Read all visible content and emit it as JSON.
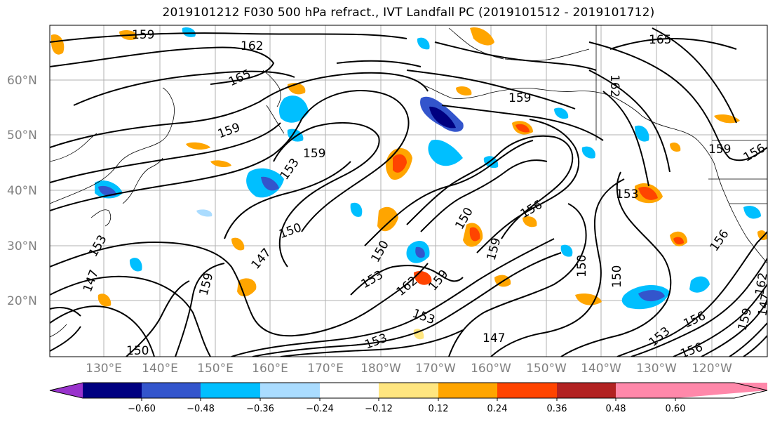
{
  "title": "2019101212 F030 500 hPa refract., IVT Landfall PC (2019101512 - 2019101712)",
  "latitude_labels": [
    "60°N",
    "50°N",
    "40°N",
    "30°N",
    "20°N"
  ],
  "longitude_labels": [
    "130°E",
    "140°E",
    "150°E",
    "160°E",
    "170°E",
    "180°W",
    "170°W",
    "160°W",
    "150°W",
    "140°W",
    "130°W",
    "120°W"
  ],
  "contour_labels": [
    "159",
    "162",
    "165",
    "165",
    "159",
    "159",
    "159",
    "156",
    "153",
    "150",
    "150",
    "147",
    "150",
    "153",
    "156",
    "159",
    "153",
    "153",
    "147",
    "147",
    "150",
    "159",
    "150",
    "153",
    "156",
    "159",
    "159",
    "156",
    "159",
    "156",
    "162",
    "153",
    "153",
    "147",
    "150",
    "162",
    "162"
  ],
  "colorbar": {
    "colors": [
      "#9933cc",
      "#000080",
      "#3355cc",
      "#00bfff",
      "#aadcff",
      "#ffffff",
      "#ffe680",
      "#ffa500",
      "#ff4400",
      "#b22222",
      "#ff88aa"
    ],
    "tick_labels": [
      "−0.60",
      "−0.48",
      "−0.36",
      "−0.24",
      "−0.12",
      "0.12",
      "0.24",
      "0.36",
      "0.48",
      "0.60"
    ]
  }
}
